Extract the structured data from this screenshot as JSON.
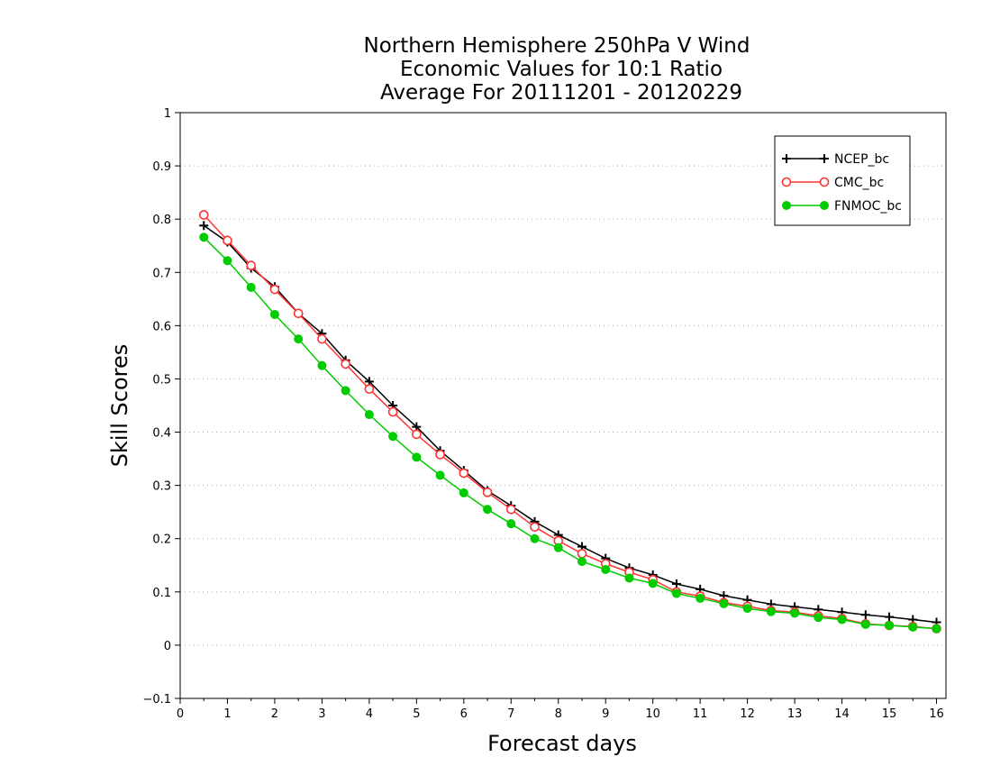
{
  "chart_data": {
    "type": "line",
    "title_lines": [
      "Northern Hemisphere 250hPa V Wind",
      "Economic Values for 10:1 Ratio",
      "Average For 20111201 - 20120229"
    ],
    "xlabel": "Forecast days",
    "ylabel": "Skill Scores",
    "xlim": [
      0,
      16.2
    ],
    "ylim": [
      -0.1,
      1
    ],
    "xticks": [
      "0",
      "1",
      "2",
      "3",
      "4",
      "5",
      "6",
      "7",
      "8",
      "9",
      "10",
      "11",
      "12",
      "13",
      "14",
      "15",
      "16"
    ],
    "yticks": [
      "−0.1",
      "0",
      "0.1",
      "0.2",
      "0.3",
      "0.4",
      "0.5",
      "0.6",
      "0.7",
      "0.8",
      "0.9",
      "1"
    ],
    "grid": "horizontal dotted",
    "legend_position": "top-right",
    "x": [
      0.5,
      1,
      1.5,
      2,
      2.5,
      3,
      3.5,
      4,
      4.5,
      5,
      5.5,
      6,
      6.5,
      7,
      7.5,
      8,
      8.5,
      9,
      9.5,
      10,
      10.5,
      11,
      11.5,
      12,
      12.5,
      13,
      13.5,
      14,
      14.5,
      15,
      15.5,
      16
    ],
    "series": [
      {
        "name": "NCEP_bc",
        "color": "#000000",
        "marker": "plus",
        "values": [
          0.788,
          0.757,
          0.708,
          0.673,
          0.623,
          0.585,
          0.535,
          0.495,
          0.45,
          0.41,
          0.365,
          0.328,
          0.29,
          0.262,
          0.232,
          0.207,
          0.185,
          0.163,
          0.145,
          0.132,
          0.115,
          0.105,
          0.093,
          0.085,
          0.077,
          0.072,
          0.067,
          0.062,
          0.057,
          0.053,
          0.048,
          0.043
        ]
      },
      {
        "name": "CMC_bc",
        "color": "#ff3333",
        "marker": "open-circle",
        "values": [
          0.808,
          0.76,
          0.713,
          0.668,
          0.623,
          0.575,
          0.528,
          0.481,
          0.438,
          0.396,
          0.358,
          0.323,
          0.287,
          0.255,
          0.222,
          0.196,
          0.172,
          0.153,
          0.137,
          0.123,
          0.1,
          0.092,
          0.08,
          0.073,
          0.065,
          0.062,
          0.055,
          0.05,
          0.04,
          0.037,
          0.035,
          0.031
        ]
      },
      {
        "name": "FNMOC_bc",
        "color": "#00cc00",
        "marker": "filled-circle",
        "values": [
          0.766,
          0.722,
          0.672,
          0.621,
          0.575,
          0.525,
          0.478,
          0.433,
          0.392,
          0.353,
          0.319,
          0.286,
          0.255,
          0.228,
          0.2,
          0.183,
          0.157,
          0.142,
          0.126,
          0.116,
          0.097,
          0.088,
          0.078,
          0.069,
          0.063,
          0.06,
          0.052,
          0.048,
          0.039,
          0.037,
          0.034,
          0.031
        ]
      }
    ]
  }
}
